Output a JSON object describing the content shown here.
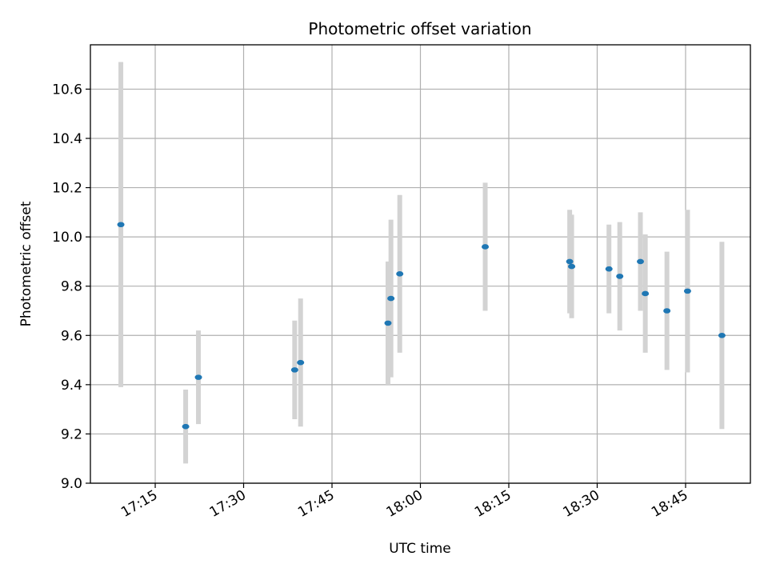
{
  "chart_data": {
    "type": "scatter",
    "title": "Photometric offset variation",
    "xlabel": "UTC time",
    "ylabel": "Photometric offset",
    "x_ticks": [
      "17:15",
      "17:30",
      "17:45",
      "18:00",
      "18:15",
      "18:30",
      "18:45"
    ],
    "y_ticks": [
      "9.0",
      "9.2",
      "9.4",
      "9.6",
      "9.8",
      "10.0",
      "10.2",
      "10.4",
      "10.6"
    ],
    "xlim": [
      "17:04",
      "18:56"
    ],
    "ylim": [
      9.0,
      10.78
    ],
    "grid": true,
    "marker_color": "#1f77b4",
    "errorbar_color": "#d3d3d3",
    "series": [
      {
        "points": [
          {
            "x": "17:09:10",
            "y": 10.05,
            "err": 0.66
          },
          {
            "x": "17:20:10",
            "y": 9.23,
            "err": 0.15
          },
          {
            "x": "17:22:20",
            "y": 9.43,
            "err": 0.19
          },
          {
            "x": "17:38:40",
            "y": 9.46,
            "err": 0.2
          },
          {
            "x": "17:39:40",
            "y": 9.49,
            "err": 0.26
          },
          {
            "x": "17:54:30",
            "y": 9.65,
            "err": 0.25
          },
          {
            "x": "17:55:00",
            "y": 9.75,
            "err": 0.32
          },
          {
            "x": "17:56:30",
            "y": 9.85,
            "err": 0.32
          },
          {
            "x": "18:11:00",
            "y": 9.96,
            "err": 0.26
          },
          {
            "x": "18:25:20",
            "y": 9.9,
            "err": 0.21
          },
          {
            "x": "18:25:40",
            "y": 9.88,
            "err": 0.21
          },
          {
            "x": "18:32:00",
            "y": 9.87,
            "err": 0.18
          },
          {
            "x": "18:33:50",
            "y": 9.84,
            "err": 0.22
          },
          {
            "x": "18:37:20",
            "y": 9.9,
            "err": 0.2
          },
          {
            "x": "18:38:10",
            "y": 9.77,
            "err": 0.24
          },
          {
            "x": "18:41:50",
            "y": 9.7,
            "err": 0.24
          },
          {
            "x": "18:45:20",
            "y": 9.78,
            "err": 0.33
          },
          {
            "x": "18:51:10",
            "y": 9.6,
            "err": 0.38
          }
        ]
      }
    ]
  }
}
